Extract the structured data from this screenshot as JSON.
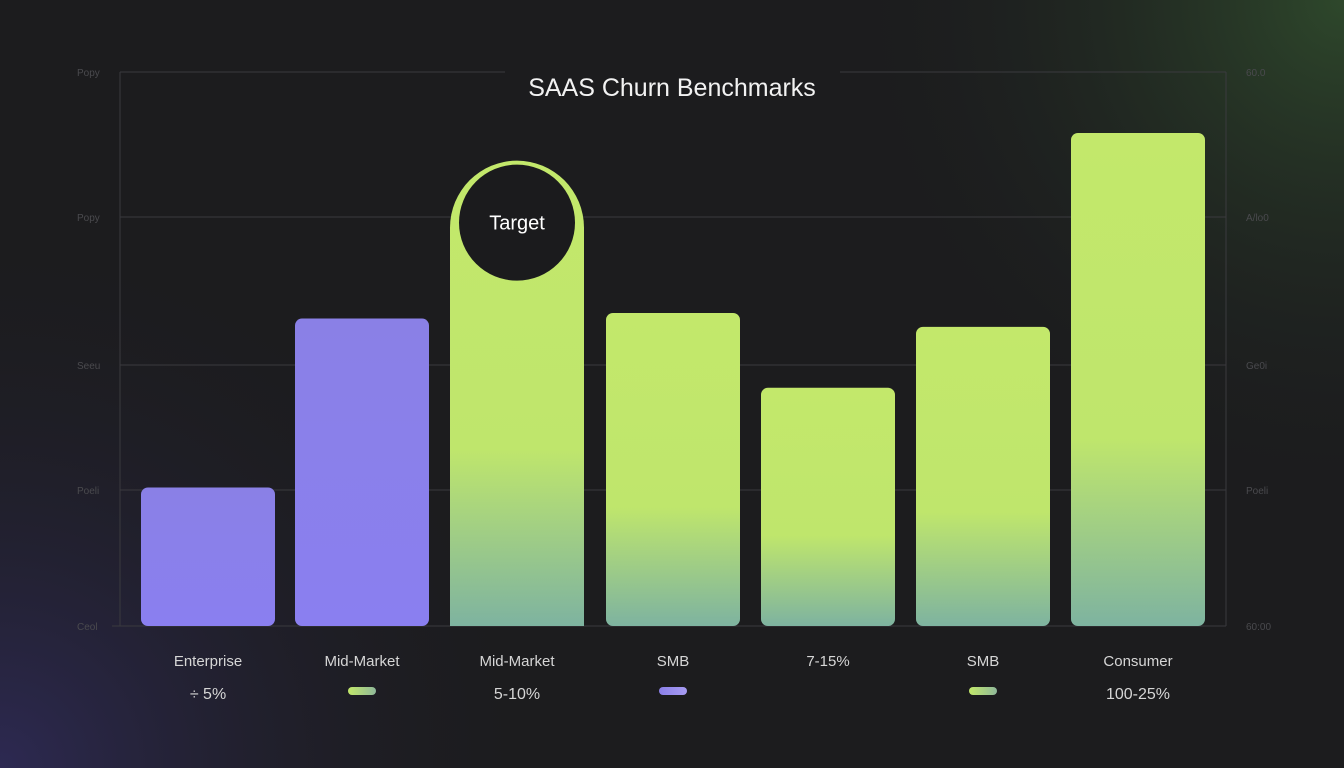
{
  "chart_data": {
    "type": "bar",
    "title": "SAAS Churn Benchmarks",
    "xlabel": "",
    "ylabel": "",
    "ylim": [
      0,
      20
    ],
    "grid": true,
    "categories": [
      "Enterprise",
      "Mid-Market",
      "Mid-Market",
      "SMB",
      "7-15%",
      "SMB",
      "Consumer"
    ],
    "values": [
      5,
      11.1,
      16.8,
      11.3,
      8.6,
      10.8,
      17.8
    ],
    "bar_colors": [
      "#8a7fe8",
      "#8a7fe8",
      "#c2e86a",
      "#c2e86a",
      "#c2e86a",
      "#c2e86a",
      "#c2e86a"
    ],
    "value_labels": [
      "÷ 5%",
      "",
      "5-10%",
      "",
      "",
      "",
      "100-25%"
    ],
    "legend_swatch_colors": [
      "",
      "#c2e86a",
      "",
      "#8a7fe8",
      "",
      "#c2e86a",
      ""
    ],
    "y_tick_labels_left": [
      "Ceol",
      "Poeli",
      "Seeu",
      "Popy",
      "Popy"
    ],
    "y_tick_labels_right": [
      "60:00",
      "Poeli",
      "Ge0i",
      "A/lo0",
      "60.0"
    ],
    "highlight": {
      "index": 2,
      "label": "Target"
    }
  }
}
